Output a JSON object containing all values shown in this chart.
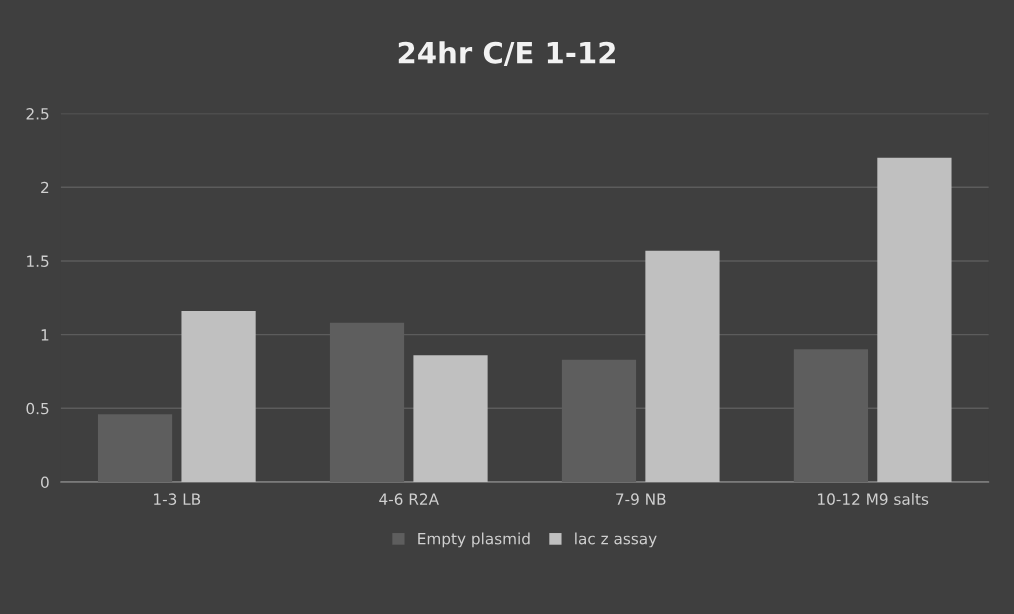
{
  "chart_data": {
    "type": "bar",
    "title": "24hr C/E 1-12",
    "categories": [
      "1-3 LB",
      "4-6 R2A",
      "7-9 NB",
      "10-12 M9 salts"
    ],
    "series": [
      {
        "name": "Empty plasmid",
        "color": "#5e5e5e",
        "values": [
          0.46,
          1.08,
          0.83,
          0.9
        ]
      },
      {
        "name": "lac z assay",
        "color": "#c0c0c0",
        "values": [
          1.16,
          0.86,
          1.57,
          2.2
        ]
      }
    ],
    "ylim": [
      0,
      2.5
    ],
    "yticks": [
      0,
      0.5,
      1,
      1.5,
      2,
      2.5
    ],
    "grid": "y",
    "legend": "bottom"
  }
}
